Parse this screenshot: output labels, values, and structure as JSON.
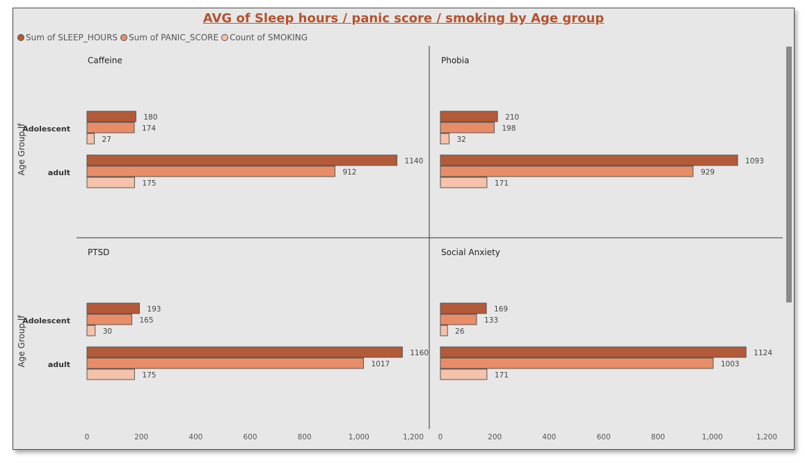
{
  "chart_data": {
    "type": "bar",
    "orientation": "horizontal",
    "title": "AVG of Sleep hours / panic score / smoking by Age group",
    "ylabel": "Age Group lf",
    "xlim": [
      0,
      1200
    ],
    "x_ticks": [
      "0",
      "200",
      "400",
      "600",
      "800",
      "1,000",
      "1,200"
    ],
    "x_tick_values": [
      0,
      200,
      400,
      600,
      800,
      1000,
      1200
    ],
    "categories": [
      "Adolescent",
      "adult"
    ],
    "legend_placement": "top-left",
    "series_names": [
      "Sum of SLEEP_HOURS",
      "Sum of PANIC_SCORE",
      "Count of SMOKING"
    ],
    "series_colors": [
      "#b35a39",
      "#e88d67",
      "#f5c2ab"
    ],
    "panels": [
      {
        "title": "Caffeine",
        "series": [
          {
            "name": "Sum of SLEEP_HOURS",
            "values": [
              180,
              1140
            ]
          },
          {
            "name": "Sum of PANIC_SCORE",
            "values": [
              174,
              912
            ]
          },
          {
            "name": "Count of SMOKING",
            "values": [
              27,
              175
            ]
          }
        ]
      },
      {
        "title": "Phobia",
        "series": [
          {
            "name": "Sum of SLEEP_HOURS",
            "values": [
              210,
              1093
            ]
          },
          {
            "name": "Sum of PANIC_SCORE",
            "values": [
              198,
              929
            ]
          },
          {
            "name": "Count of SMOKING",
            "values": [
              32,
              171
            ]
          }
        ]
      },
      {
        "title": "PTSD",
        "series": [
          {
            "name": "Sum of SLEEP_HOURS",
            "values": [
              193,
              1160
            ]
          },
          {
            "name": "Sum of PANIC_SCORE",
            "values": [
              165,
              1017
            ]
          },
          {
            "name": "Count of SMOKING",
            "values": [
              30,
              175
            ]
          }
        ]
      },
      {
        "title": "Social Anxiety",
        "series": [
          {
            "name": "Sum of SLEEP_HOURS",
            "values": [
              169,
              1124
            ]
          },
          {
            "name": "Sum of PANIC_SCORE",
            "values": [
              133,
              1003
            ]
          },
          {
            "name": "Count of SMOKING",
            "values": [
              26,
              171
            ]
          }
        ]
      }
    ]
  }
}
